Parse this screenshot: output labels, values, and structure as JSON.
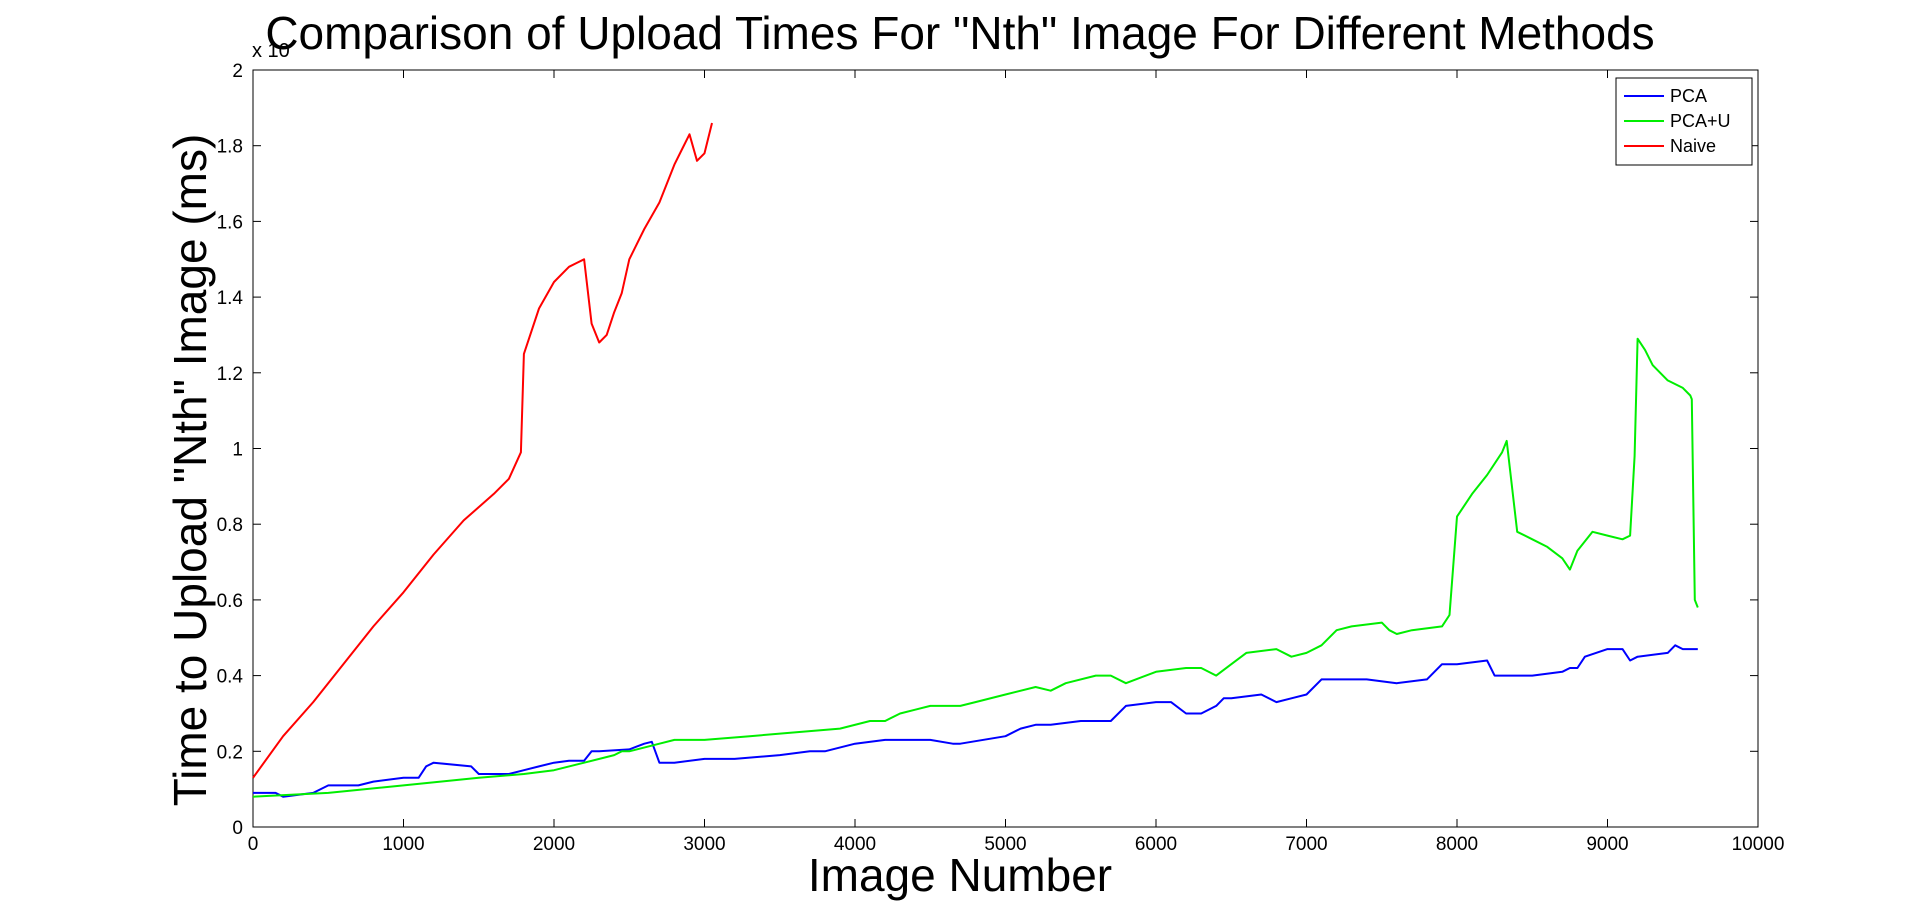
{
  "chart_data": {
    "type": "line",
    "title": "Comparison of Upload Times For \"Nth\" Image For Different Methods",
    "xlabel": "Image Number",
    "ylabel": "Time to Upload \"Nth\" Image (ms)",
    "y_exponent_label": "x 10",
    "xlim": [
      0,
      10000
    ],
    "ylim": [
      0,
      2
    ],
    "xticks": [
      0,
      1000,
      2000,
      3000,
      4000,
      5000,
      6000,
      7000,
      8000,
      9000,
      10000
    ],
    "yticks": [
      0,
      0.2,
      0.4,
      0.6,
      0.8,
      1,
      1.2,
      1.4,
      1.6,
      1.8,
      2
    ],
    "xtick_labels": [
      "0",
      "1000",
      "2000",
      "3000",
      "4000",
      "5000",
      "6000",
      "7000",
      "8000",
      "9000",
      "10000"
    ],
    "ytick_labels": [
      "0",
      "0.2",
      "0.4",
      "0.6",
      "0.8",
      "1",
      "1.2",
      "1.4",
      "1.6",
      "1.8",
      "2"
    ],
    "grid": false,
    "legend_position": "top-right",
    "series": [
      {
        "name": "PCA",
        "color": "#0000ff",
        "x": [
          0,
          150,
          200,
          400,
          500,
          700,
          800,
          1000,
          1100,
          1150,
          1200,
          1450,
          1500,
          1700,
          1800,
          1900,
          2000,
          2100,
          2200,
          2250,
          2300,
          2500,
          2600,
          2650,
          2700,
          2800,
          3000,
          3200,
          3500,
          3700,
          3800,
          4000,
          4200,
          4400,
          4500,
          4650,
          4700,
          5000,
          5100,
          5200,
          5300,
          5500,
          5600,
          5700,
          5800,
          6000,
          6100,
          6200,
          6300,
          6400,
          6450,
          6500,
          6700,
          6800,
          6900,
          7000,
          7100,
          7200,
          7400,
          7600,
          7800,
          7900,
          8000,
          8200,
          8250,
          8300,
          8500,
          8700,
          8750,
          8800,
          8850,
          9000,
          9100,
          9150,
          9200,
          9400,
          9450,
          9500,
          9600
        ],
        "y": [
          0.09,
          0.09,
          0.08,
          0.09,
          0.11,
          0.11,
          0.12,
          0.13,
          0.13,
          0.16,
          0.17,
          0.16,
          0.14,
          0.14,
          0.15,
          0.16,
          0.17,
          0.175,
          0.175,
          0.2,
          0.2,
          0.205,
          0.22,
          0.225,
          0.17,
          0.17,
          0.18,
          0.18,
          0.19,
          0.2,
          0.2,
          0.22,
          0.23,
          0.23,
          0.23,
          0.22,
          0.22,
          0.24,
          0.26,
          0.27,
          0.27,
          0.28,
          0.28,
          0.28,
          0.32,
          0.33,
          0.33,
          0.3,
          0.3,
          0.32,
          0.34,
          0.34,
          0.35,
          0.33,
          0.34,
          0.35,
          0.39,
          0.39,
          0.39,
          0.38,
          0.39,
          0.43,
          0.43,
          0.44,
          0.4,
          0.4,
          0.4,
          0.41,
          0.42,
          0.42,
          0.45,
          0.47,
          0.47,
          0.44,
          0.45,
          0.46,
          0.48,
          0.47,
          0.47
        ]
      },
      {
        "name": "PCA+U",
        "color": "#00ee00",
        "x": [
          0,
          500,
          1000,
          1500,
          1800,
          2000,
          2200,
          2400,
          2450,
          2500,
          2700,
          2800,
          3000,
          3300,
          3600,
          3900,
          4100,
          4200,
          4300,
          4400,
          4500,
          4600,
          4700,
          4800,
          5000,
          5200,
          5300,
          5400,
          5600,
          5700,
          5800,
          6000,
          6200,
          6300,
          6400,
          6500,
          6600,
          6800,
          6900,
          7000,
          7100,
          7200,
          7300,
          7500,
          7550,
          7600,
          7700,
          7900,
          7950,
          8000,
          8100,
          8200,
          8300,
          8330,
          8400,
          8500,
          8600,
          8700,
          8750,
          8800,
          8900,
          9000,
          9100,
          9150,
          9180,
          9200,
          9250,
          9300,
          9400,
          9500,
          9550,
          9560,
          9580,
          9600
        ],
        "y": [
          0.08,
          0.09,
          0.11,
          0.13,
          0.14,
          0.15,
          0.17,
          0.19,
          0.2,
          0.2,
          0.22,
          0.23,
          0.23,
          0.24,
          0.25,
          0.26,
          0.28,
          0.28,
          0.3,
          0.31,
          0.32,
          0.32,
          0.32,
          0.33,
          0.35,
          0.37,
          0.36,
          0.38,
          0.4,
          0.4,
          0.38,
          0.41,
          0.42,
          0.42,
          0.4,
          0.43,
          0.46,
          0.47,
          0.45,
          0.46,
          0.48,
          0.52,
          0.53,
          0.54,
          0.52,
          0.51,
          0.52,
          0.53,
          0.56,
          0.82,
          0.88,
          0.93,
          0.99,
          1.02,
          0.78,
          0.76,
          0.74,
          0.71,
          0.68,
          0.73,
          0.78,
          0.77,
          0.76,
          0.77,
          0.98,
          1.29,
          1.26,
          1.22,
          1.18,
          1.16,
          1.14,
          1.13,
          0.6,
          0.58
        ]
      },
      {
        "name": "Naive",
        "color": "#ff0000",
        "x": [
          0,
          200,
          400,
          600,
          800,
          1000,
          1200,
          1400,
          1600,
          1700,
          1780,
          1800,
          1900,
          2000,
          2100,
          2150,
          2200,
          2250,
          2300,
          2350,
          2400,
          2450,
          2500,
          2600,
          2700,
          2800,
          2850,
          2900,
          2950,
          3000,
          3050
        ],
        "y": [
          0.13,
          0.24,
          0.33,
          0.43,
          0.53,
          0.62,
          0.72,
          0.81,
          0.88,
          0.92,
          0.99,
          1.25,
          1.37,
          1.44,
          1.48,
          1.49,
          1.5,
          1.33,
          1.28,
          1.3,
          1.36,
          1.41,
          1.5,
          1.58,
          1.65,
          1.75,
          1.79,
          1.83,
          1.76,
          1.78,
          1.86
        ]
      }
    ]
  }
}
